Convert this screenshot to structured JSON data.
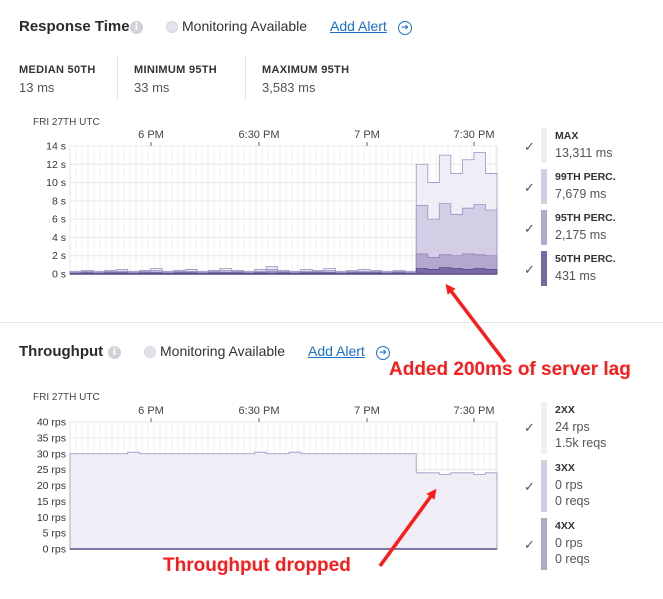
{
  "response_time": {
    "title": "Response Time",
    "info_icon": "i",
    "monitoring_label": "Monitoring Available",
    "add_alert_label": "Add Alert",
    "alert_icon": "➔",
    "stats": [
      {
        "label": "MEDIAN 50TH",
        "value": "13 ms"
      },
      {
        "label": "MINIMUM 95TH",
        "value": "33 ms"
      },
      {
        "label": "MAXIMUM 95TH",
        "value": "3,583 ms"
      }
    ],
    "date_label": "FRI 27TH UTC",
    "time_ticks": [
      "6 PM",
      "6:30 PM",
      "7 PM",
      "7:30 PM"
    ],
    "y_ticks": [
      "14 s",
      "12 s",
      "10 s",
      "8 s",
      "6 s",
      "4 s",
      "2 s",
      "0 s"
    ],
    "legend": [
      {
        "title": "MAX",
        "value": "13,311 ms",
        "color": "#efedf6"
      },
      {
        "title": "99TH PERC.",
        "value": "7,679 ms",
        "color": "#d4cde6"
      },
      {
        "title": "95TH PERC.",
        "value": "2,175 ms",
        "color": "#b3a7d0"
      },
      {
        "title": "50TH PERC.",
        "value": "431 ms",
        "color": "#7a68a8"
      }
    ],
    "check_mark": "✓"
  },
  "throughput": {
    "title": "Throughput",
    "info_icon": "i",
    "monitoring_label": "Monitoring Available",
    "add_alert_label": "Add Alert",
    "alert_icon": "➔",
    "date_label": "FRI 27TH UTC",
    "time_ticks": [
      "6 PM",
      "6:30 PM",
      "7 PM",
      "7:30 PM"
    ],
    "y_ticks": [
      "40 rps",
      "35 rps",
      "30 rps",
      "25 rps",
      "20 rps",
      "15 rps",
      "10 rps",
      "5 rps",
      "0 rps"
    ],
    "legend": [
      {
        "title": "2XX",
        "value": "24 rps",
        "sub": "1.5k reqs",
        "color": "#efedf6"
      },
      {
        "title": "3XX",
        "value": "0 rps",
        "sub": "0 reqs",
        "color": "#d4cde6"
      },
      {
        "title": "4XX",
        "value": "0 rps",
        "sub": "0 reqs",
        "color": "#b3a7d0"
      }
    ],
    "check_mark": "✓"
  },
  "annotations": {
    "server_lag": "Added 200ms of server lag",
    "throughput_dropped": "Throughput dropped",
    "color": "#ff1a1a"
  },
  "chart_data": [
    {
      "type": "area",
      "title": "Response Time",
      "xlabel": "FRI 27TH UTC",
      "ylabel": "",
      "x_ticks": [
        "6 PM",
        "6:30 PM",
        "7 PM",
        "7:30 PM"
      ],
      "ylim": [
        0,
        14
      ],
      "y_unit": "s",
      "series": [
        {
          "name": "MAX",
          "values": [
            0.3,
            0.4,
            0.3,
            0.4,
            0.5,
            0.3,
            0.4,
            0.6,
            0.3,
            0.4,
            0.5,
            0.3,
            0.4,
            0.6,
            0.4,
            0.3,
            0.5,
            0.8,
            0.4,
            0.3,
            0.5,
            0.4,
            0.6,
            0.3,
            0.4,
            0.5,
            0.4,
            0.3,
            0.4,
            0.3,
            12,
            10,
            13,
            11,
            12.5,
            13.3,
            11
          ]
        },
        {
          "name": "99TH PERC.",
          "values": [
            0.2,
            0.3,
            0.2,
            0.3,
            0.3,
            0.2,
            0.3,
            0.4,
            0.2,
            0.3,
            0.3,
            0.2,
            0.3,
            0.4,
            0.3,
            0.2,
            0.3,
            0.5,
            0.3,
            0.2,
            0.3,
            0.3,
            0.4,
            0.2,
            0.3,
            0.3,
            0.3,
            0.2,
            0.3,
            0.2,
            7.5,
            6,
            7.7,
            6.5,
            7.2,
            7.6,
            7
          ]
        },
        {
          "name": "95TH PERC.",
          "values": [
            0.1,
            0.2,
            0.1,
            0.2,
            0.2,
            0.1,
            0.2,
            0.2,
            0.1,
            0.2,
            0.2,
            0.1,
            0.2,
            0.2,
            0.2,
            0.1,
            0.2,
            0.3,
            0.2,
            0.1,
            0.2,
            0.2,
            0.2,
            0.1,
            0.2,
            0.2,
            0.2,
            0.1,
            0.2,
            0.1,
            2.2,
            1.8,
            2.1,
            2.0,
            2.2,
            2.1,
            2.0
          ]
        },
        {
          "name": "50TH PERC.",
          "values": [
            0.05,
            0.1,
            0.05,
            0.1,
            0.1,
            0.05,
            0.1,
            0.1,
            0.05,
            0.1,
            0.1,
            0.05,
            0.1,
            0.1,
            0.1,
            0.05,
            0.1,
            0.1,
            0.1,
            0.05,
            0.1,
            0.1,
            0.1,
            0.05,
            0.1,
            0.1,
            0.1,
            0.05,
            0.1,
            0.05,
            0.6,
            0.5,
            0.7,
            0.6,
            0.5,
            0.6,
            0.5
          ]
        }
      ]
    },
    {
      "type": "area",
      "title": "Throughput",
      "xlabel": "FRI 27TH UTC",
      "ylabel": "",
      "x_ticks": [
        "6 PM",
        "6:30 PM",
        "7 PM",
        "7:30 PM"
      ],
      "ylim": [
        0,
        40
      ],
      "y_unit": "rps",
      "series": [
        {
          "name": "2XX",
          "values": [
            30,
            30,
            30,
            30,
            30,
            30.5,
            30,
            30,
            30,
            30,
            30,
            30,
            30,
            30,
            30,
            30,
            30.5,
            30,
            30,
            30.5,
            30,
            30,
            30,
            30,
            30,
            30,
            30,
            30,
            30,
            30,
            24,
            24,
            23.5,
            24,
            24,
            23.5,
            24
          ]
        },
        {
          "name": "3XX",
          "values": [
            0,
            0,
            0,
            0,
            0,
            0,
            0,
            0,
            0,
            0,
            0,
            0,
            0,
            0,
            0,
            0,
            0,
            0,
            0,
            0,
            0,
            0,
            0,
            0,
            0,
            0,
            0,
            0,
            0,
            0,
            0,
            0,
            0,
            0,
            0,
            0,
            0
          ]
        },
        {
          "name": "4XX",
          "values": [
            0,
            0,
            0,
            0,
            0,
            0,
            0,
            0,
            0,
            0,
            0,
            0,
            0,
            0,
            0,
            0,
            0,
            0,
            0,
            0,
            0,
            0,
            0,
            0,
            0,
            0,
            0,
            0,
            0,
            0,
            0,
            0,
            0,
            0,
            0,
            0,
            0
          ]
        }
      ]
    }
  ]
}
